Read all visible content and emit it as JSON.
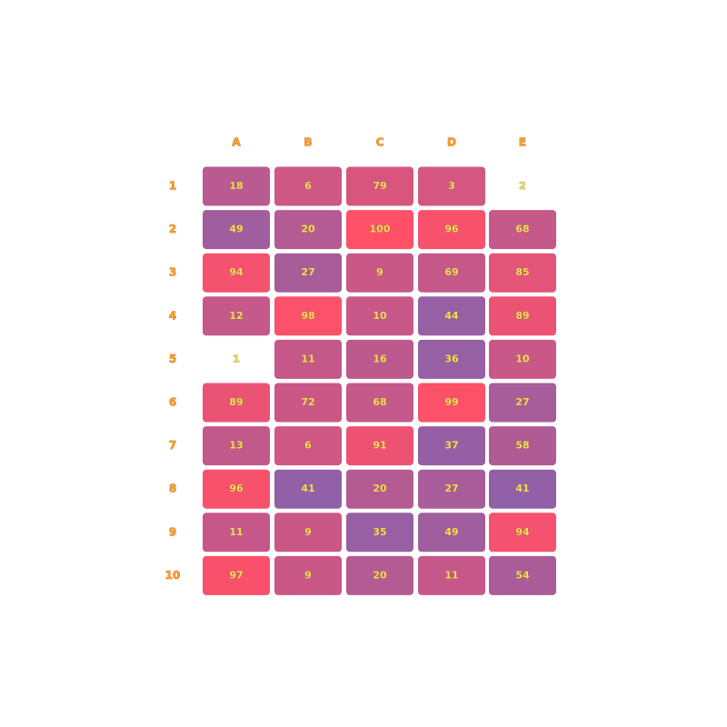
{
  "chart_data": {
    "type": "heatmap",
    "columns": [
      "A",
      "B",
      "C",
      "D",
      "E"
    ],
    "rows": [
      "1",
      "2",
      "3",
      "4",
      "5",
      "6",
      "7",
      "8",
      "9",
      "10"
    ],
    "values": [
      [
        18,
        6,
        79,
        3,
        2
      ],
      [
        49,
        20,
        100,
        96,
        68
      ],
      [
        94,
        27,
        9,
        69,
        85
      ],
      [
        12,
        98,
        10,
        44,
        89
      ],
      [
        1,
        11,
        16,
        36,
        10
      ],
      [
        89,
        72,
        68,
        99,
        27
      ],
      [
        13,
        6,
        91,
        37,
        58
      ],
      [
        96,
        41,
        20,
        27,
        41
      ],
      [
        11,
        9,
        35,
        49,
        94
      ],
      [
        97,
        9,
        20,
        11,
        54
      ]
    ],
    "hidden_cells": [
      [
        0,
        4
      ],
      [
        4,
        0
      ]
    ],
    "colors": {
      "low": "#ff5068",
      "high": "#9060a8",
      "column_label": "#f5a623",
      "value_text": "#e8e34a"
    },
    "title": "",
    "xlabel": "",
    "ylabel": ""
  }
}
